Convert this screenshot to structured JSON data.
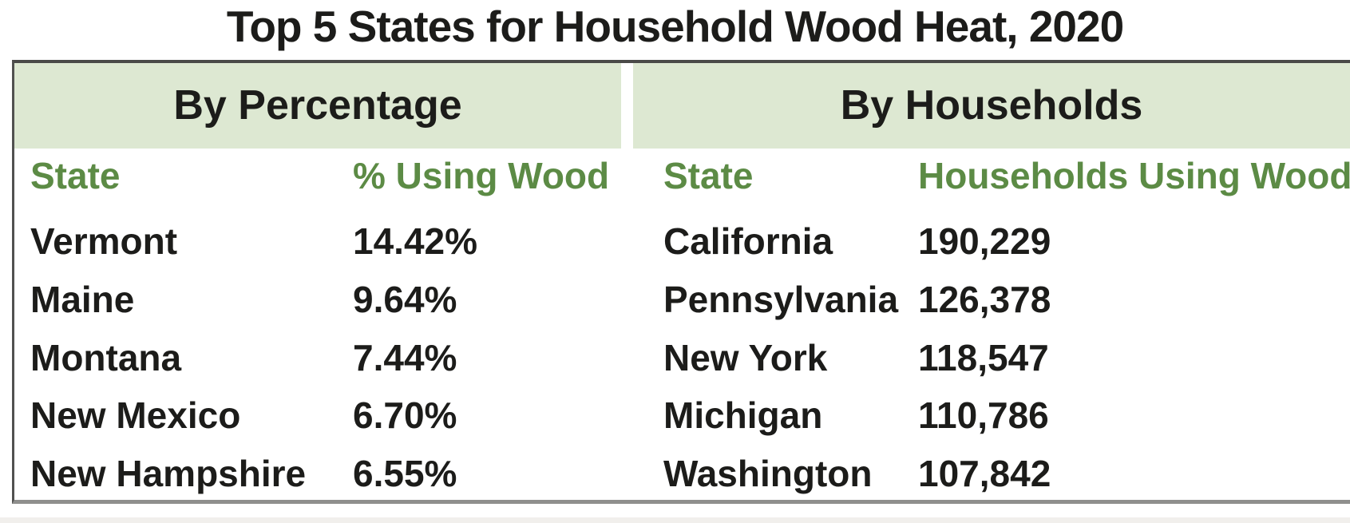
{
  "title": "Top 5 States for Household Wood Heat, 2020",
  "chart_data": {
    "type": "table",
    "title": "Top 5 States for Household Wood Heat, 2020",
    "sections": [
      {
        "label": "By Percentage",
        "columns": [
          "State",
          "% Using Wood"
        ],
        "rows": [
          [
            "Vermont",
            "14.42%"
          ],
          [
            "Maine",
            "9.64%"
          ],
          [
            "Montana",
            "7.44%"
          ],
          [
            "New Mexico",
            "6.70%"
          ],
          [
            "New Hampshire",
            "6.55%"
          ]
        ]
      },
      {
        "label": "By Households",
        "columns": [
          "State",
          "Households Using Wood"
        ],
        "rows": [
          [
            "California",
            "190,229"
          ],
          [
            "Pennsylvania",
            "126,378"
          ],
          [
            "New York",
            "118,547"
          ],
          [
            "Michigan",
            "110,786"
          ],
          [
            "Washington",
            "107,842"
          ]
        ]
      }
    ]
  },
  "colors": {
    "band_green": "#dde8d2",
    "header_green": "#5c8b45",
    "text_black": "#1c1c1a",
    "border_dark": "#4a4a48",
    "border_left": "#515150",
    "border_bottom": "#8f8f8d",
    "bottom_strip": "#f1efec"
  }
}
